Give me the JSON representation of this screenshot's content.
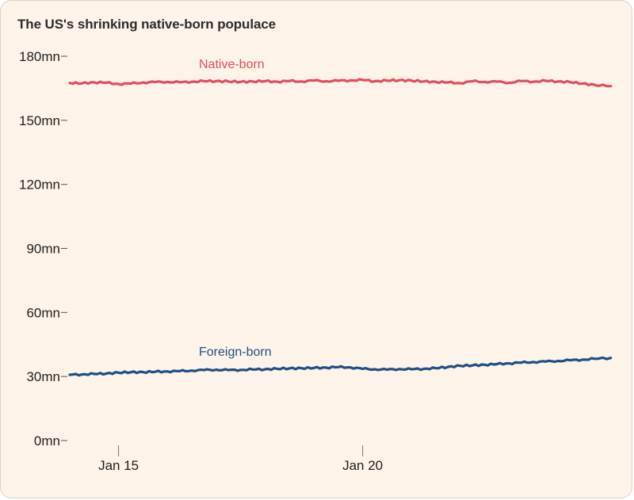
{
  "chart_data": {
    "type": "line",
    "title": "The US's shrinking native-born populace",
    "xlabel": "",
    "ylabel": "",
    "yunit": "mn",
    "ylim": [
      0,
      180
    ],
    "yticks": [
      {
        "value": 0,
        "label": "0mn"
      },
      {
        "value": 30,
        "label": "30mn"
      },
      {
        "value": 60,
        "label": "60mn"
      },
      {
        "value": 90,
        "label": "90mn"
      },
      {
        "value": 120,
        "label": "120mn"
      },
      {
        "value": 150,
        "label": "150mn"
      },
      {
        "value": 180,
        "label": "180mn"
      }
    ],
    "xlim": [
      "2014-01",
      "2025-04"
    ],
    "xticks": [
      {
        "value": "2015-01",
        "label": "Jan 15"
      },
      {
        "value": "2020-01",
        "label": "Jan 20"
      }
    ],
    "grid": false,
    "legend": "inline labels above lines",
    "series": [
      {
        "name": "Native-born",
        "color": "#e04e5e",
        "points": [
          [
            "2014-01",
            167.5
          ],
          [
            "2014-04",
            167.3
          ],
          [
            "2014-07",
            167.8
          ],
          [
            "2014-10",
            167.6
          ],
          [
            "2015-01",
            167.0
          ],
          [
            "2015-04",
            167.2
          ],
          [
            "2015-07",
            167.7
          ],
          [
            "2015-10",
            167.9
          ],
          [
            "2016-01",
            168.0
          ],
          [
            "2016-04",
            167.8
          ],
          [
            "2016-07",
            168.1
          ],
          [
            "2016-10",
            168.3
          ],
          [
            "2017-01",
            168.4
          ],
          [
            "2017-04",
            168.2
          ],
          [
            "2017-07",
            168.0
          ],
          [
            "2017-10",
            168.2
          ],
          [
            "2018-01",
            168.3
          ],
          [
            "2018-04",
            168.1
          ],
          [
            "2018-07",
            168.4
          ],
          [
            "2018-10",
            168.2
          ],
          [
            "2019-01",
            168.6
          ],
          [
            "2019-04",
            168.3
          ],
          [
            "2019-07",
            168.5
          ],
          [
            "2019-10",
            168.7
          ],
          [
            "2020-01",
            168.9
          ],
          [
            "2020-04",
            168.3
          ],
          [
            "2020-07",
            168.6
          ],
          [
            "2020-10",
            168.8
          ],
          [
            "2021-01",
            168.6
          ],
          [
            "2021-04",
            168.2
          ],
          [
            "2021-07",
            168.0
          ],
          [
            "2021-10",
            167.7
          ],
          [
            "2022-01",
            167.4
          ],
          [
            "2022-04",
            168.3
          ],
          [
            "2022-07",
            168.0
          ],
          [
            "2022-10",
            168.1
          ],
          [
            "2023-01",
            167.6
          ],
          [
            "2023-04",
            168.4
          ],
          [
            "2023-07",
            168.1
          ],
          [
            "2023-10",
            168.5
          ],
          [
            "2024-01",
            168.2
          ],
          [
            "2024-04",
            167.9
          ],
          [
            "2024-07",
            167.2
          ],
          [
            "2024-10",
            166.6
          ],
          [
            "2025-02",
            166.0
          ]
        ]
      },
      {
        "name": "Foreign-born",
        "color": "#1f4f86",
        "points": [
          [
            "2014-01",
            30.8
          ],
          [
            "2014-04",
            31.0
          ],
          [
            "2014-07",
            31.2
          ],
          [
            "2014-10",
            31.4
          ],
          [
            "2015-01",
            31.8
          ],
          [
            "2015-04",
            32.0
          ],
          [
            "2015-07",
            32.1
          ],
          [
            "2015-10",
            32.2
          ],
          [
            "2016-01",
            32.4
          ],
          [
            "2016-04",
            32.5
          ],
          [
            "2016-07",
            32.8
          ],
          [
            "2016-10",
            33.0
          ],
          [
            "2017-01",
            33.2
          ],
          [
            "2017-04",
            33.0
          ],
          [
            "2017-07",
            33.1
          ],
          [
            "2017-10",
            33.3
          ],
          [
            "2018-01",
            33.4
          ],
          [
            "2018-04",
            33.6
          ],
          [
            "2018-07",
            33.8
          ],
          [
            "2018-10",
            33.9
          ],
          [
            "2019-01",
            34.0
          ],
          [
            "2019-04",
            34.2
          ],
          [
            "2019-07",
            34.4
          ],
          [
            "2019-10",
            34.3
          ],
          [
            "2020-01",
            33.6
          ],
          [
            "2020-04",
            33.4
          ],
          [
            "2020-07",
            33.2
          ],
          [
            "2020-10",
            33.5
          ],
          [
            "2021-01",
            33.4
          ],
          [
            "2021-04",
            33.6
          ],
          [
            "2021-07",
            33.9
          ],
          [
            "2021-10",
            34.5
          ],
          [
            "2022-01",
            35.0
          ],
          [
            "2022-04",
            35.2
          ],
          [
            "2022-07",
            35.5
          ],
          [
            "2022-10",
            35.8
          ],
          [
            "2023-01",
            36.2
          ],
          [
            "2023-04",
            36.5
          ],
          [
            "2023-07",
            36.8
          ],
          [
            "2023-10",
            37.0
          ],
          [
            "2024-01",
            37.3
          ],
          [
            "2024-04",
            37.6
          ],
          [
            "2024-07",
            37.9
          ],
          [
            "2024-10",
            38.3
          ],
          [
            "2025-02",
            38.7
          ]
        ]
      }
    ]
  }
}
